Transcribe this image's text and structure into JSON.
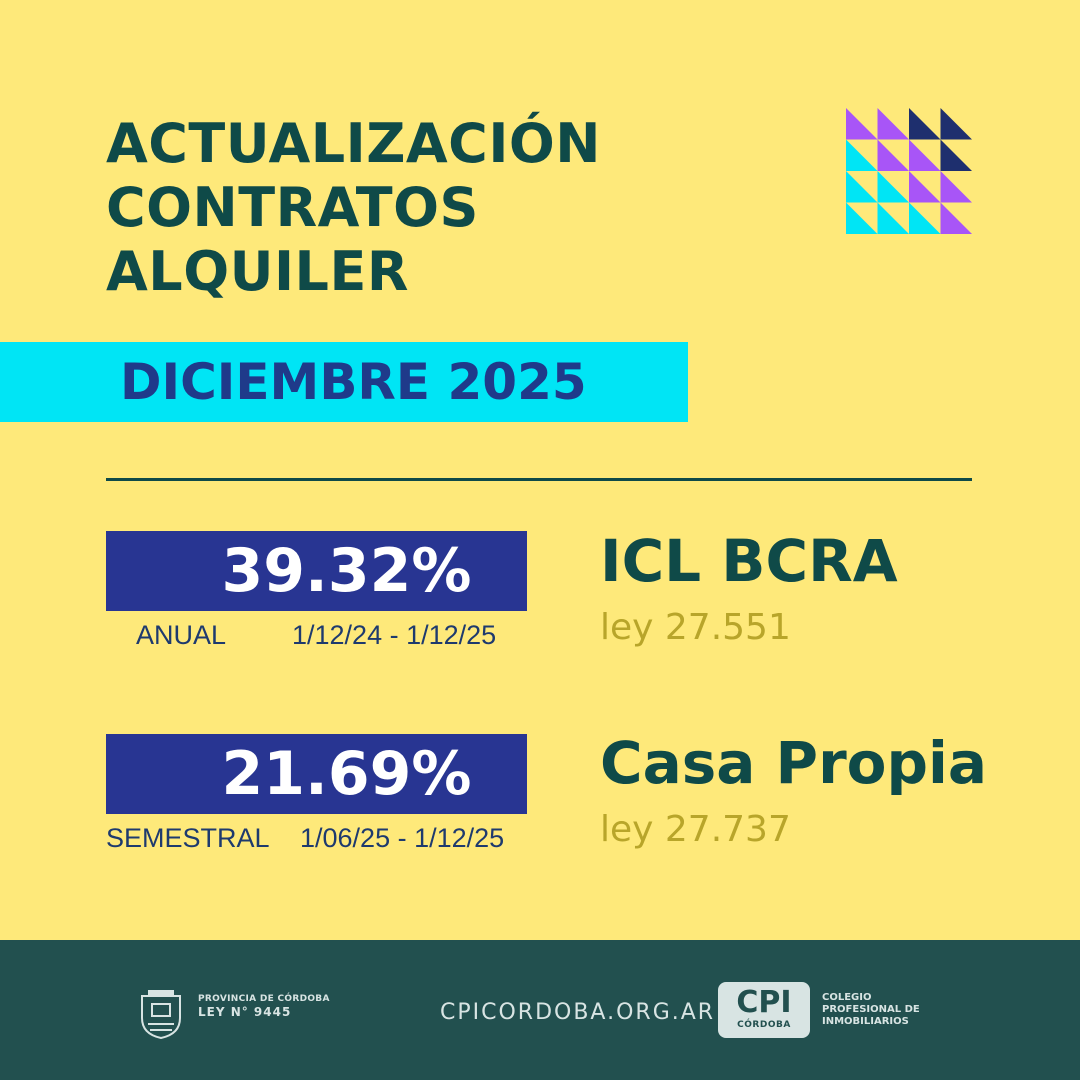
{
  "title": {
    "line1": "ACTUALIZACIÓN",
    "line2": "CONTRATOS",
    "line3": "ALQUILER"
  },
  "month": "DICIEMBRE 2025",
  "colors": {
    "background": "#FEE97A",
    "title": "#0F4A48",
    "month_band": "#00E5F5",
    "value_box": "#283592",
    "ley": "#B8A52A",
    "footer": "#22504F",
    "deco_purple": "#A855F7",
    "deco_cyan": "#00E5F5",
    "deco_navy": "#1E2F6E"
  },
  "annual": {
    "value": "39.32%",
    "label": "ANUAL",
    "range": "1/12/24 - 1/12/25",
    "index_name": "ICL  BCRA",
    "law": "ley 27.551"
  },
  "semester": {
    "value": "21.69%",
    "label": "SEMESTRAL",
    "range": "1/06/25 - 1/12/25",
    "index_name": "Casa Propia",
    "law": "ley 27.737"
  },
  "footer": {
    "province_line1": "PROVINCIA DE CÓRDOBA",
    "province_line2": "LEY N° 9445",
    "website": "CPICORDOBA.ORG.AR",
    "logo_main": "CPI",
    "logo_sub": "CÓRDOBA",
    "org_line1": "COLEGIO",
    "org_line2": "PROFESIONAL DE",
    "org_line3": "INMOBILIARIOS"
  }
}
